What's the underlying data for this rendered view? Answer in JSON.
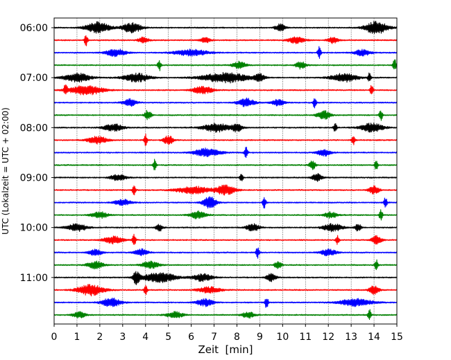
{
  "chart_data": {
    "type": "line",
    "title": "",
    "xlabel": "Zeit  [min]",
    "ylabel": "UTC (Lokalzeit = UTC + 02:00)",
    "xlim": [
      0,
      15
    ],
    "x_ticks": [
      "0",
      "1",
      "2",
      "3",
      "4",
      "5",
      "6",
      "7",
      "8",
      "9",
      "10",
      "11",
      "12",
      "13",
      "14",
      "15"
    ],
    "y_tick_labels": [
      "06:00",
      "07:00",
      "08:00",
      "09:00",
      "10:00",
      "11:00"
    ],
    "y_tick_trace_index": [
      0,
      4,
      8,
      12,
      16,
      20
    ],
    "grid": "vertical dotted at each minute",
    "legend": "none",
    "trace_interval_minutes": 15,
    "series_colors": [
      "#000000",
      "#ff0000",
      "#0000ff",
      "#008000"
    ],
    "traces": [
      {
        "start": "06:00",
        "color": "#000000",
        "events": [
          [
            1.9,
            0.9,
            0.7
          ],
          [
            3.4,
            0.8,
            0.6
          ],
          [
            9.9,
            0.6,
            0.3
          ],
          [
            14.1,
            1.0,
            0.7
          ]
        ]
      },
      {
        "start": "06:15",
        "color": "#ff0000",
        "events": [
          [
            1.4,
            1.0,
            0.1
          ],
          [
            3.9,
            0.5,
            0.3
          ],
          [
            6.6,
            0.5,
            0.3
          ],
          [
            10.6,
            0.5,
            0.5
          ],
          [
            12.2,
            0.5,
            0.3
          ]
        ]
      },
      {
        "start": "06:30",
        "color": "#0000ff",
        "events": [
          [
            2.7,
            0.6,
            0.6
          ],
          [
            6.0,
            0.5,
            1.0
          ],
          [
            11.6,
            1.0,
            0.1
          ],
          [
            13.5,
            0.5,
            0.5
          ]
        ]
      },
      {
        "start": "06:45",
        "color": "#008000",
        "events": [
          [
            4.6,
            1.0,
            0.1
          ],
          [
            8.1,
            0.6,
            0.4
          ],
          [
            10.8,
            0.6,
            0.3
          ],
          [
            14.9,
            1.0,
            0.1
          ]
        ]
      },
      {
        "start": "07:00",
        "color": "#000000",
        "events": [
          [
            1.0,
            0.7,
            0.8
          ],
          [
            3.6,
            0.7,
            0.8
          ],
          [
            7.5,
            0.8,
            1.4
          ],
          [
            9.0,
            0.6,
            0.3
          ],
          [
            12.7,
            0.7,
            0.8
          ],
          [
            13.8,
            0.8,
            0.1
          ]
        ]
      },
      {
        "start": "07:15",
        "color": "#ff0000",
        "events": [
          [
            0.5,
            0.9,
            0.1
          ],
          [
            1.4,
            0.8,
            1.0
          ],
          [
            6.5,
            0.6,
            0.6
          ],
          [
            13.9,
            0.9,
            0.1
          ]
        ]
      },
      {
        "start": "07:30",
        "color": "#0000ff",
        "events": [
          [
            3.3,
            0.6,
            0.4
          ],
          [
            8.4,
            0.7,
            0.5
          ],
          [
            9.8,
            0.5,
            0.4
          ],
          [
            11.4,
            0.9,
            0.1
          ]
        ]
      },
      {
        "start": "07:45",
        "color": "#008000",
        "events": [
          [
            4.1,
            0.8,
            0.2
          ],
          [
            11.8,
            0.7,
            0.4
          ],
          [
            14.3,
            0.9,
            0.1
          ]
        ]
      },
      {
        "start": "08:00",
        "color": "#000000",
        "events": [
          [
            2.6,
            0.6,
            0.6
          ],
          [
            7.1,
            0.7,
            0.8
          ],
          [
            8.0,
            0.7,
            0.3
          ],
          [
            12.3,
            0.8,
            0.1
          ],
          [
            13.9,
            0.7,
            0.7
          ]
        ]
      },
      {
        "start": "08:15",
        "color": "#ff0000",
        "events": [
          [
            1.9,
            0.6,
            0.6
          ],
          [
            4.0,
            0.9,
            0.1
          ],
          [
            5.0,
            0.7,
            0.3
          ],
          [
            13.1,
            0.8,
            0.1
          ]
        ]
      },
      {
        "start": "08:30",
        "color": "#0000ff",
        "events": [
          [
            6.7,
            0.7,
            0.8
          ],
          [
            8.4,
            0.9,
            0.1
          ],
          [
            11.8,
            0.6,
            0.4
          ]
        ]
      },
      {
        "start": "08:45",
        "color": "#008000",
        "events": [
          [
            4.4,
            0.9,
            0.1
          ],
          [
            11.3,
            0.7,
            0.2
          ],
          [
            14.1,
            0.9,
            0.1
          ]
        ]
      },
      {
        "start": "09:00",
        "color": "#000000",
        "events": [
          [
            2.8,
            0.5,
            0.5
          ],
          [
            8.2,
            0.7,
            0.1
          ],
          [
            11.5,
            0.6,
            0.3
          ]
        ]
      },
      {
        "start": "09:15",
        "color": "#ff0000",
        "events": [
          [
            3.5,
            1.0,
            0.1
          ],
          [
            6.1,
            0.6,
            1.0
          ],
          [
            7.5,
            0.8,
            0.6
          ],
          [
            14.0,
            0.7,
            0.3
          ]
        ]
      },
      {
        "start": "09:30",
        "color": "#0000ff",
        "events": [
          [
            3.0,
            0.5,
            0.5
          ],
          [
            6.8,
            1.0,
            0.4
          ],
          [
            9.2,
            1.0,
            0.1
          ],
          [
            14.5,
            0.9,
            0.1
          ]
        ]
      },
      {
        "start": "09:45",
        "color": "#008000",
        "events": [
          [
            2.0,
            0.5,
            0.5
          ],
          [
            6.3,
            0.6,
            0.5
          ],
          [
            12.1,
            0.5,
            0.4
          ],
          [
            14.3,
            1.0,
            0.1
          ]
        ]
      },
      {
        "start": "10:00",
        "color": "#000000",
        "events": [
          [
            1.0,
            0.6,
            0.6
          ],
          [
            4.6,
            0.6,
            0.2
          ],
          [
            8.7,
            0.6,
            0.4
          ],
          [
            12.2,
            0.6,
            0.6
          ],
          [
            13.3,
            0.6,
            0.2
          ]
        ]
      },
      {
        "start": "10:15",
        "color": "#ff0000",
        "events": [
          [
            2.6,
            0.6,
            0.6
          ],
          [
            3.5,
            1.0,
            0.1
          ],
          [
            12.4,
            0.8,
            0.1
          ],
          [
            14.1,
            0.8,
            0.3
          ]
        ]
      },
      {
        "start": "10:30",
        "color": "#0000ff",
        "events": [
          [
            1.8,
            0.5,
            0.4
          ],
          [
            3.8,
            0.6,
            0.4
          ],
          [
            8.9,
            0.9,
            0.1
          ],
          [
            12.0,
            0.5,
            0.5
          ]
        ]
      },
      {
        "start": "10:45",
        "color": "#008000",
        "events": [
          [
            1.8,
            0.6,
            0.5
          ],
          [
            4.2,
            0.6,
            0.5
          ],
          [
            9.8,
            0.7,
            0.2
          ],
          [
            14.1,
            0.9,
            0.1
          ]
        ]
      },
      {
        "start": "11:00",
        "color": "#000000",
        "events": [
          [
            3.6,
            1.0,
            0.2
          ],
          [
            4.6,
            0.8,
            1.0
          ],
          [
            6.5,
            0.6,
            0.6
          ],
          [
            9.5,
            0.6,
            0.3
          ]
        ]
      },
      {
        "start": "11:15",
        "color": "#ff0000",
        "events": [
          [
            1.6,
            0.9,
            0.8
          ],
          [
            4.0,
            0.8,
            0.1
          ],
          [
            6.8,
            0.5,
            0.7
          ],
          [
            14.0,
            0.7,
            0.3
          ]
        ]
      },
      {
        "start": "11:30",
        "color": "#0000ff",
        "events": [
          [
            2.5,
            0.7,
            0.6
          ],
          [
            6.6,
            0.6,
            0.5
          ],
          [
            9.3,
            1.0,
            0.1
          ],
          [
            13.2,
            0.6,
            1.0
          ]
        ]
      },
      {
        "start": "11:45",
        "color": "#008000",
        "events": [
          [
            1.1,
            0.5,
            0.4
          ],
          [
            5.3,
            0.5,
            0.5
          ],
          [
            8.5,
            0.5,
            0.4
          ],
          [
            13.8,
            1.0,
            0.1
          ]
        ]
      }
    ]
  }
}
